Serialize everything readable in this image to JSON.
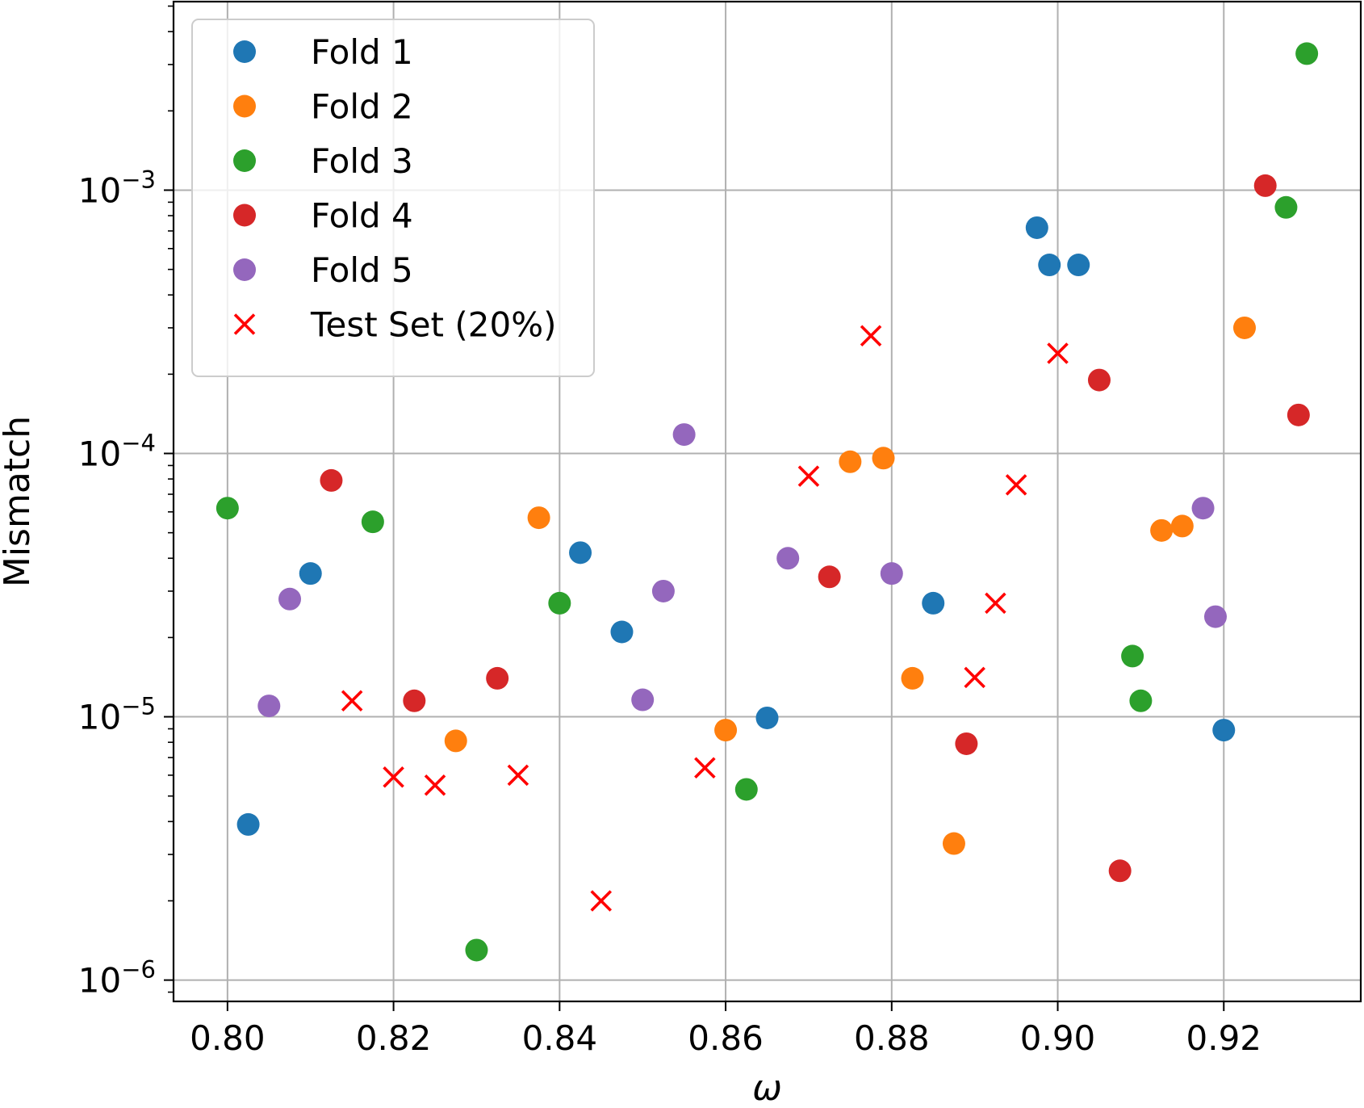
{
  "chart_data": {
    "type": "scatter",
    "title": "",
    "xlabel": "ω",
    "ylabel": "Mismatch",
    "xlim": [
      0.7935,
      0.9365
    ],
    "ylim": [
      8.3e-07,
      0.0052
    ],
    "yscale": "log",
    "grid": true,
    "legend_position": "top-left",
    "x_ticks": [
      {
        "value": 0.8,
        "label": "0.80"
      },
      {
        "value": 0.82,
        "label": "0.82"
      },
      {
        "value": 0.84,
        "label": "0.84"
      },
      {
        "value": 0.86,
        "label": "0.86"
      },
      {
        "value": 0.88,
        "label": "0.88"
      },
      {
        "value": 0.9,
        "label": "0.90"
      },
      {
        "value": 0.92,
        "label": "0.92"
      }
    ],
    "y_ticks": [
      {
        "value": 1e-06,
        "base": "10",
        "exp": "−6"
      },
      {
        "value": 1e-05,
        "base": "10",
        "exp": "−5"
      },
      {
        "value": 0.0001,
        "base": "10",
        "exp": "−4"
      },
      {
        "value": 0.001,
        "base": "10",
        "exp": "−3"
      }
    ],
    "series": [
      {
        "name": "Fold 1",
        "color": "#1f77b4",
        "marker": "circle",
        "points": [
          [
            0.8025,
            3.9e-06
          ],
          [
            0.81,
            3.5e-05
          ],
          [
            0.8425,
            4.2e-05
          ],
          [
            0.8475,
            2.1e-05
          ],
          [
            0.865,
            9.9e-06
          ],
          [
            0.885,
            2.7e-05
          ],
          [
            0.8975,
            0.00072
          ],
          [
            0.899,
            0.00052
          ],
          [
            0.9025,
            0.00052
          ],
          [
            0.92,
            8.9e-06
          ]
        ]
      },
      {
        "name": "Fold 2",
        "color": "#ff7f0e",
        "marker": "circle",
        "points": [
          [
            0.8275,
            8.1e-06
          ],
          [
            0.8375,
            5.7e-05
          ],
          [
            0.86,
            8.9e-06
          ],
          [
            0.875,
            9.3e-05
          ],
          [
            0.879,
            9.6e-05
          ],
          [
            0.8825,
            1.4e-05
          ],
          [
            0.8875,
            3.3e-06
          ],
          [
            0.9125,
            5.1e-05
          ],
          [
            0.915,
            5.3e-05
          ],
          [
            0.9225,
            0.0003
          ]
        ]
      },
      {
        "name": "Fold 3",
        "color": "#2ca02c",
        "marker": "circle",
        "points": [
          [
            0.8,
            6.2e-05
          ],
          [
            0.8175,
            5.5e-05
          ],
          [
            0.83,
            1.3e-06
          ],
          [
            0.84,
            2.7e-05
          ],
          [
            0.8625,
            5.3e-06
          ],
          [
            0.909,
            1.7e-05
          ],
          [
            0.91,
            1.15e-05
          ],
          [
            0.9275,
            0.00086
          ],
          [
            0.93,
            0.0033
          ]
        ]
      },
      {
        "name": "Fold 4",
        "color": "#d62728",
        "marker": "circle",
        "points": [
          [
            0.8125,
            7.9e-05
          ],
          [
            0.8225,
            1.15e-05
          ],
          [
            0.8325,
            1.4e-05
          ],
          [
            0.8725,
            3.4e-05
          ],
          [
            0.889,
            7.9e-06
          ],
          [
            0.905,
            0.00019
          ],
          [
            0.9075,
            2.6e-06
          ],
          [
            0.925,
            0.00104
          ],
          [
            0.929,
            0.00014
          ]
        ]
      },
      {
        "name": "Fold 5",
        "color": "#9467bd",
        "marker": "circle",
        "points": [
          [
            0.805,
            1.1e-05
          ],
          [
            0.8075,
            2.8e-05
          ],
          [
            0.85,
            1.16e-05
          ],
          [
            0.8525,
            3e-05
          ],
          [
            0.855,
            0.000118
          ],
          [
            0.8675,
            4e-05
          ],
          [
            0.88,
            3.5e-05
          ],
          [
            0.9175,
            6.2e-05
          ],
          [
            0.919,
            2.4e-05
          ]
        ]
      },
      {
        "name": "Test Set (20%)",
        "color": "#ff0000",
        "marker": "x",
        "points": [
          [
            0.815,
            1.15e-05
          ],
          [
            0.82,
            5.9e-06
          ],
          [
            0.825,
            5.5e-06
          ],
          [
            0.835,
            6e-06
          ],
          [
            0.845,
            2e-06
          ],
          [
            0.8575,
            6.4e-06
          ],
          [
            0.87,
            8.2e-05
          ],
          [
            0.8775,
            0.00028
          ],
          [
            0.89,
            1.41e-05
          ],
          [
            0.8925,
            2.7e-05
          ],
          [
            0.895,
            7.6e-05
          ],
          [
            0.9,
            0.00024
          ]
        ]
      }
    ]
  }
}
